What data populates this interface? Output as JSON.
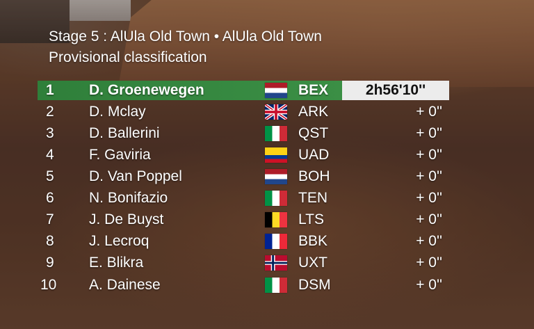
{
  "title": {
    "stage": "Stage 5 : AlUla Old Town • AlUla Old Town",
    "subtitle": "Provisional classification"
  },
  "colors": {
    "leader_bar": "#3b8f45",
    "leader_time_bg": "#ececec"
  },
  "leader": {
    "position": "1",
    "name": "D. Groenewegen",
    "flag": "netherlands-flag",
    "team": "BEX",
    "time": "2h56'10''"
  },
  "rows": [
    {
      "position": "2",
      "name": "D. Mclay",
      "flag": "united-kingdom-flag",
      "team": "ARK",
      "time": "+ 0''"
    },
    {
      "position": "3",
      "name": "D. Ballerini",
      "flag": "italy-flag",
      "team": "QST",
      "time": "+ 0''"
    },
    {
      "position": "4",
      "name": "F. Gaviria",
      "flag": "colombia-flag",
      "team": "UAD",
      "time": "+ 0''"
    },
    {
      "position": "5",
      "name": "D. Van Poppel",
      "flag": "netherlands-flag",
      "team": "BOH",
      "time": "+ 0''"
    },
    {
      "position": "6",
      "name": "N. Bonifazio",
      "flag": "italy-flag",
      "team": "TEN",
      "time": "+ 0''"
    },
    {
      "position": "7",
      "name": "J. De Buyst",
      "flag": "belgium-flag",
      "team": "LTS",
      "time": "+ 0''"
    },
    {
      "position": "8",
      "name": "J. Lecroq",
      "flag": "france-flag",
      "team": "BBK",
      "time": "+ 0''"
    },
    {
      "position": "9",
      "name": "E. Blikra",
      "flag": "norway-flag",
      "team": "UXT",
      "time": "+ 0''"
    },
    {
      "position": "10",
      "name": "A. Dainese",
      "flag": "italy-flag",
      "team": "DSM",
      "time": "+ 0''"
    }
  ]
}
